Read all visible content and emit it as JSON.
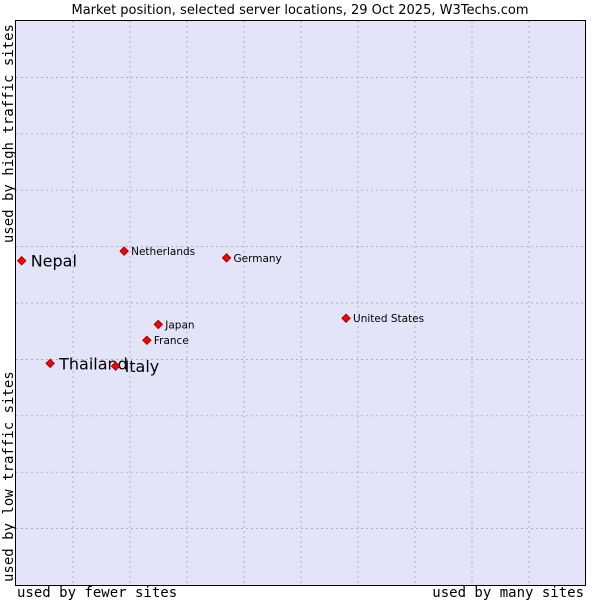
{
  "chart_data": {
    "type": "scatter",
    "title": "Market position, selected server locations, 29 Oct 2025, W3Techs.com",
    "xlabel_low": "used by fewer sites",
    "xlabel_high": "used by many sites",
    "ylabel_low": "used by low traffic sites",
    "ylabel_high": "used by high traffic sites",
    "xlim": [
      0,
      1
    ],
    "ylim": [
      0,
      1
    ],
    "grid": true,
    "marker_color": "#ff0000",
    "plot_background": "#e4e4f8",
    "points": [
      {
        "name": "Nepal",
        "x": 0.01,
        "y": 0.575,
        "emphasis": true
      },
      {
        "name": "Netherlands",
        "x": 0.19,
        "y": 0.592,
        "emphasis": false
      },
      {
        "name": "Germany",
        "x": 0.37,
        "y": 0.58,
        "emphasis": false
      },
      {
        "name": "United States",
        "x": 0.58,
        "y": 0.473,
        "emphasis": false
      },
      {
        "name": "Japan",
        "x": 0.25,
        "y": 0.462,
        "emphasis": false
      },
      {
        "name": "France",
        "x": 0.23,
        "y": 0.434,
        "emphasis": false
      },
      {
        "name": "Thailand",
        "x": 0.06,
        "y": 0.393,
        "emphasis": true
      },
      {
        "name": "Italy",
        "x": 0.175,
        "y": 0.388,
        "emphasis": true
      }
    ]
  }
}
